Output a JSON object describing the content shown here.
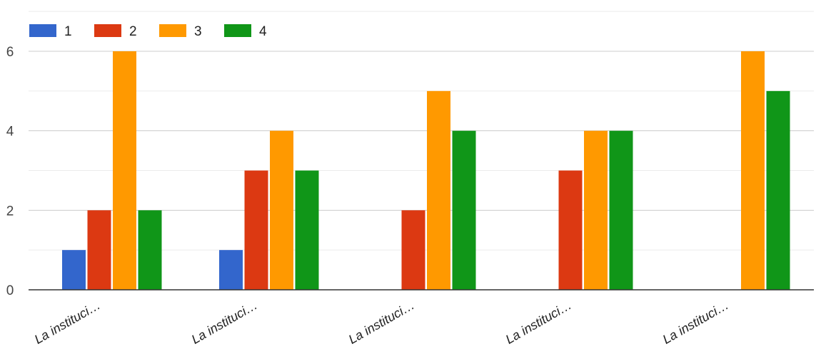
{
  "chart_data": {
    "type": "bar",
    "categories": [
      "La instituci…",
      "La instituci…",
      "La instituci…",
      "La instituci…",
      "La instituci…"
    ],
    "series": [
      {
        "name": "1",
        "color": "#3366cc",
        "values": [
          1,
          1,
          0,
          0,
          0
        ]
      },
      {
        "name": "2",
        "color": "#dc3912",
        "values": [
          2,
          3,
          2,
          3,
          0
        ]
      },
      {
        "name": "3",
        "color": "#ff9900",
        "values": [
          6,
          4,
          5,
          4,
          6
        ]
      },
      {
        "name": "4",
        "color": "#109618",
        "values": [
          2,
          3,
          4,
          4,
          5
        ]
      }
    ],
    "ylim": [
      0,
      6
    ],
    "yticks": [
      0,
      2,
      4,
      6
    ],
    "minor_gridlines": true,
    "grid": true,
    "legend_position": "top-left",
    "title": "",
    "xlabel": "",
    "ylabel": ""
  }
}
